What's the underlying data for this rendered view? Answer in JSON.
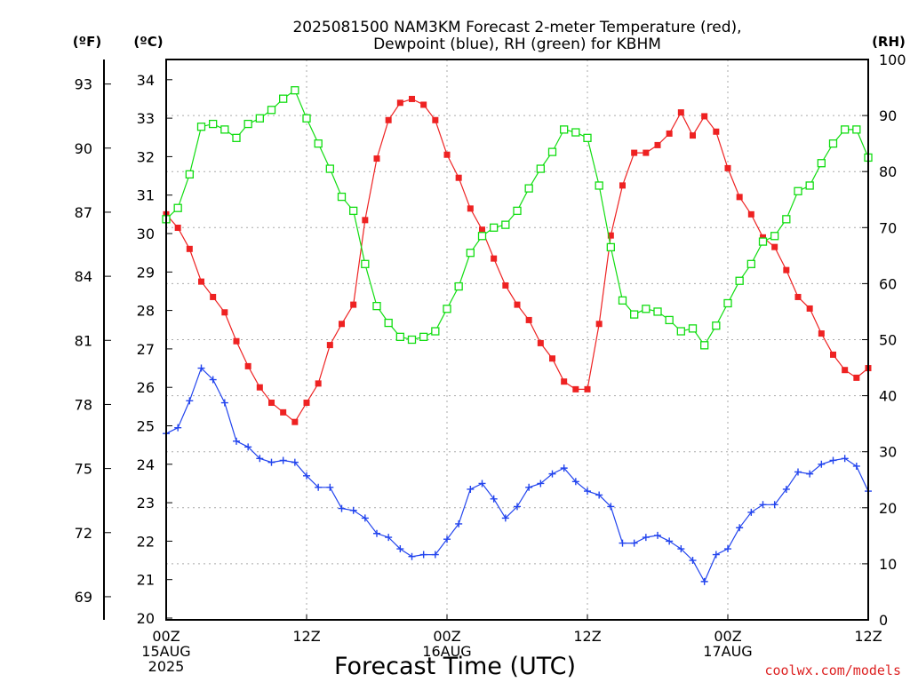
{
  "chart_data": {
    "type": "line",
    "title_line1": "2025081500 NAM3KM Forecast 2-meter Temperature (red),",
    "title_line2": "Dewpoint (blue), RH (green) for KBHM",
    "xlabel": "Forecast Time (UTC)",
    "watermark": "coolwx.com/models",
    "unit_labels": {
      "fahrenheit": "(ºF)",
      "celsius": "(ºC)",
      "rh": "(RH)"
    },
    "x_ticks": [
      {
        "hour": 0,
        "lines": [
          "00Z",
          "15AUG",
          "2025"
        ]
      },
      {
        "hour": 12,
        "lines": [
          "12Z"
        ]
      },
      {
        "hour": 24,
        "lines": [
          "00Z",
          "16AUG"
        ]
      },
      {
        "hour": 36,
        "lines": [
          "12Z"
        ]
      },
      {
        "hour": 48,
        "lines": [
          "00Z",
          "17AUG"
        ]
      },
      {
        "hour": 60,
        "lines": [
          "12Z"
        ]
      }
    ],
    "xlim": [
      0,
      60
    ],
    "ylim_celsius": [
      20,
      34.5
    ],
    "ylim_rh": [
      0,
      100
    ],
    "celsius_ticks": [
      20,
      21,
      22,
      23,
      24,
      25,
      26,
      27,
      28,
      29,
      30,
      31,
      32,
      33,
      34
    ],
    "fahrenheit_ticks": [
      69,
      72,
      75,
      78,
      81,
      84,
      87,
      90,
      93
    ],
    "rh_ticks": [
      0,
      10,
      20,
      30,
      40,
      50,
      60,
      70,
      80,
      90,
      100
    ],
    "grid": true,
    "hours": [
      0,
      1,
      2,
      3,
      4,
      5,
      6,
      7,
      8,
      9,
      10,
      11,
      12,
      13,
      14,
      15,
      16,
      17,
      18,
      19,
      20,
      21,
      22,
      23,
      24,
      25,
      26,
      27,
      28,
      29,
      30,
      31,
      32,
      33,
      34,
      35,
      36,
      37,
      38,
      39,
      40,
      41,
      42,
      43,
      44,
      45,
      46,
      47,
      48,
      49,
      50,
      51,
      52,
      53,
      54,
      55,
      56,
      57,
      58,
      59,
      60
    ],
    "series": [
      {
        "name": "Temperature",
        "axis": "celsius",
        "color": "#ee2222",
        "marker": "filled-square",
        "values": [
          30.5,
          30.15,
          29.6,
          28.75,
          28.35,
          27.95,
          27.2,
          26.55,
          26.0,
          25.6,
          25.35,
          25.1,
          25.6,
          26.1,
          27.1,
          27.65,
          28.15,
          30.35,
          31.95,
          32.95,
          33.4,
          33.5,
          33.35,
          32.95,
          32.05,
          31.45,
          30.65,
          30.1,
          29.35,
          28.65,
          28.15,
          27.75,
          27.15,
          26.75,
          26.15,
          25.95,
          25.95,
          27.65,
          29.95,
          31.25,
          32.1,
          32.1,
          32.3,
          32.6,
          33.15,
          32.55,
          33.05,
          32.65,
          31.7,
          30.95,
          30.5,
          29.9,
          29.65,
          29.05,
          28.35,
          28.05,
          27.4,
          26.85,
          26.45,
          26.25,
          26.5
        ]
      },
      {
        "name": "Dewpoint",
        "axis": "celsius",
        "color": "#2244ee",
        "marker": "plus",
        "values": [
          24.8,
          24.95,
          25.65,
          26.5,
          26.2,
          25.6,
          24.6,
          24.45,
          24.15,
          24.05,
          24.1,
          24.05,
          23.7,
          23.4,
          23.4,
          22.85,
          22.8,
          22.6,
          22.2,
          22.1,
          21.8,
          21.6,
          21.65,
          21.65,
          22.05,
          22.45,
          23.35,
          23.5,
          23.1,
          22.6,
          22.9,
          23.4,
          23.5,
          23.75,
          23.9,
          23.55,
          23.3,
          23.2,
          22.9,
          21.95,
          21.95,
          22.1,
          22.15,
          22.0,
          21.8,
          21.5,
          20.95,
          21.65,
          21.8,
          22.35,
          22.75,
          22.95,
          22.95,
          23.35,
          23.8,
          23.75,
          24.0,
          24.1,
          24.15,
          23.95,
          23.3
        ]
      },
      {
        "name": "RH",
        "axis": "rh",
        "color": "#11dd11",
        "marker": "open-square",
        "values": [
          71.5,
          73.5,
          79.5,
          88.0,
          88.5,
          87.5,
          86.0,
          88.5,
          89.5,
          91.0,
          93.0,
          94.5,
          89.5,
          85.0,
          80.5,
          75.5,
          73.0,
          63.5,
          56.0,
          53.0,
          50.5,
          50.0,
          50.5,
          51.5,
          55.5,
          59.5,
          65.5,
          68.5,
          70.0,
          70.5,
          73.0,
          77.0,
          80.5,
          83.5,
          87.5,
          87.0,
          86.0,
          77.5,
          66.5,
          57.0,
          54.5,
          55.5,
          55.0,
          53.5,
          51.5,
          52.0,
          49.0,
          52.5,
          56.5,
          60.5,
          63.5,
          67.5,
          68.5,
          71.5,
          76.5,
          77.5,
          81.5,
          85.0,
          87.5,
          87.5,
          82.5
        ]
      }
    ]
  }
}
